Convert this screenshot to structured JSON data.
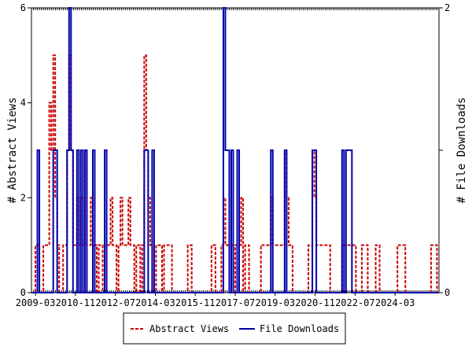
{
  "chart_data": {
    "type": "line",
    "xlabel": "",
    "ylabel_left": "# Abstract Views",
    "ylabel_right": "# File Downloads",
    "x_ticks": [
      "2009-03",
      "2010-11",
      "2012-07",
      "2014-03",
      "2015-11",
      "2017-07",
      "2019-03",
      "2020-11",
      "2022-07",
      "2024-03"
    ],
    "x_range_months": [
      "2009-01",
      "2025-12"
    ],
    "ylim_left": [
      0,
      6
    ],
    "ylim_right": [
      0,
      2
    ],
    "yticks_left": [
      "0",
      "2",
      "4",
      "6"
    ],
    "yticks_right": [
      "0",
      "1",
      "2"
    ],
    "grid": false,
    "legend_placement": "bottom-center",
    "series": [
      {
        "name": "Abstract Views",
        "axis": "left",
        "color": "#cc0000",
        "style": "dashed",
        "monthly_values": [
          0,
          0,
          1,
          1,
          0,
          0,
          1,
          1,
          1,
          4,
          3,
          5,
          2,
          1,
          0,
          0,
          1,
          1,
          3,
          5,
          3,
          1,
          1,
          2,
          1,
          2,
          1,
          3,
          1,
          1,
          2,
          1,
          1,
          0,
          1,
          1,
          0,
          1,
          1,
          1,
          2,
          1,
          1,
          0,
          1,
          2,
          1,
          1,
          1,
          2,
          1,
          1,
          0,
          1,
          1,
          0,
          1,
          5,
          3,
          2,
          1,
          1,
          0,
          1,
          1,
          1,
          0,
          1,
          1,
          1,
          1,
          0,
          0,
          0,
          0,
          0,
          0,
          0,
          0,
          1,
          1,
          0,
          0,
          0,
          0,
          0,
          0,
          0,
          0,
          0,
          0,
          1,
          1,
          0,
          0,
          0,
          1,
          2,
          1,
          1,
          1,
          1,
          0,
          1,
          1,
          1,
          2,
          0,
          1,
          1,
          0,
          0,
          0,
          0,
          0,
          0,
          1,
          1,
          1,
          1,
          1,
          2,
          1,
          1,
          1,
          1,
          1,
          1,
          3,
          2,
          1,
          1,
          0,
          0,
          0,
          0,
          0,
          0,
          0,
          0,
          1,
          1,
          3,
          2,
          1,
          1,
          1,
          1,
          1,
          1,
          1,
          0,
          0,
          0,
          0,
          0,
          0,
          1,
          1,
          1,
          1,
          1,
          1,
          1,
          0,
          0,
          0,
          1,
          1,
          1,
          0,
          0,
          0,
          0,
          1,
          1,
          0,
          0,
          0,
          0,
          0,
          0,
          0,
          0,
          0,
          1,
          1,
          1,
          1,
          0,
          0,
          0,
          0,
          0,
          0,
          0,
          0,
          0,
          0,
          0,
          0,
          0,
          1,
          1,
          1,
          0
        ]
      },
      {
        "name": "File Downloads",
        "axis": "right",
        "color": "#0000aa",
        "style": "solid",
        "monthly_values": [
          0,
          0,
          0,
          1,
          0,
          0,
          0,
          0,
          0,
          0,
          0,
          1,
          1,
          0,
          0,
          0,
          0,
          0,
          1,
          2,
          1,
          0,
          0,
          1,
          0,
          1,
          0,
          1,
          0,
          0,
          0,
          1,
          0,
          0,
          0,
          0,
          0,
          1,
          0,
          0,
          0,
          0,
          0,
          0,
          0,
          0,
          0,
          0,
          0,
          0,
          0,
          0,
          0,
          0,
          0,
          0,
          0,
          1,
          1,
          0,
          0,
          1,
          0,
          0,
          0,
          0,
          0,
          0,
          0,
          0,
          0,
          0,
          0,
          0,
          0,
          0,
          0,
          0,
          0,
          0,
          0,
          0,
          0,
          0,
          0,
          0,
          0,
          0,
          0,
          0,
          0,
          0,
          0,
          0,
          0,
          0,
          0,
          2,
          1,
          1,
          0,
          1,
          0,
          0,
          1,
          0,
          0,
          0,
          0,
          0,
          0,
          0,
          0,
          0,
          0,
          0,
          0,
          0,
          0,
          0,
          0,
          1,
          0,
          0,
          0,
          0,
          0,
          0,
          1,
          0,
          0,
          0,
          0,
          0,
          0,
          0,
          0,
          0,
          0,
          0,
          0,
          0,
          1,
          1,
          0,
          0,
          0,
          0,
          0,
          0,
          0,
          0,
          0,
          0,
          0,
          0,
          0,
          1,
          0,
          1,
          1,
          1,
          0,
          0,
          0,
          0,
          0,
          0,
          0,
          0,
          0,
          0,
          0,
          0,
          0,
          0,
          0,
          0,
          0,
          0,
          0,
          0,
          0,
          0,
          0,
          0,
          0,
          0,
          0,
          0,
          0,
          0,
          0,
          0,
          0,
          0,
          0,
          0,
          0,
          0,
          0,
          0,
          0,
          0,
          0,
          0
        ]
      }
    ]
  }
}
